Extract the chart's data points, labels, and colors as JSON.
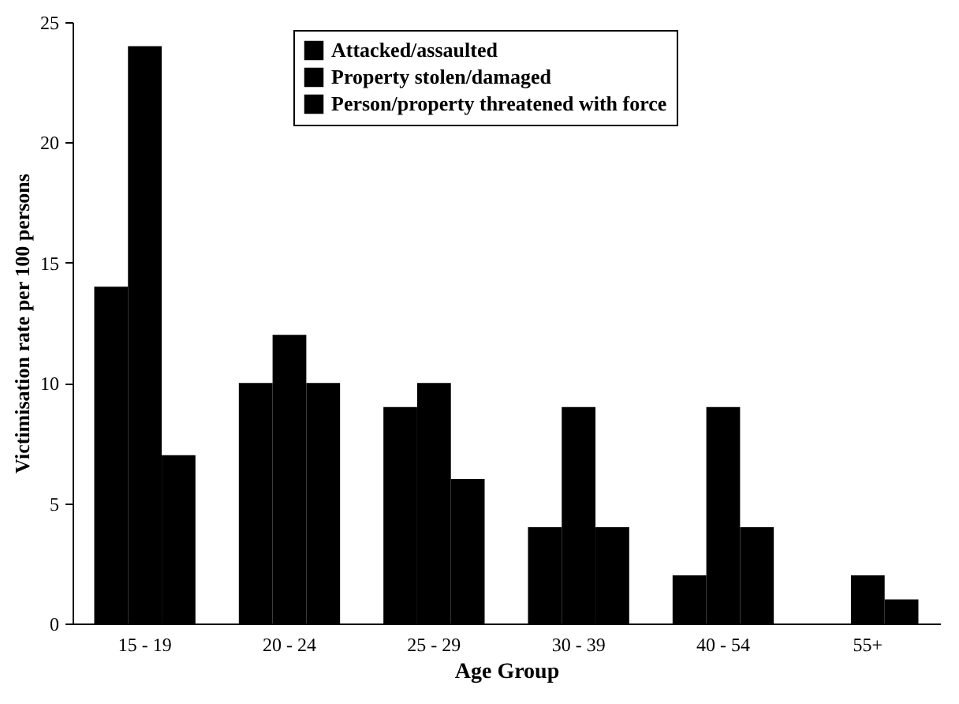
{
  "chart_data": {
    "type": "bar",
    "xlabel": "Age Group",
    "ylabel": "Victimisation rate per 100 persons",
    "categories": [
      "15 - 19",
      "20 - 24",
      "25 - 29",
      "30 - 39",
      "40 - 54",
      "55+"
    ],
    "series": [
      {
        "name": "Attacked/assaulted",
        "color": "#000000",
        "values": [
          14,
          10,
          9,
          4,
          2,
          0
        ]
      },
      {
        "name": "Property stolen/damaged",
        "color": "#000000",
        "values": [
          24,
          12,
          10,
          9,
          9,
          2
        ]
      },
      {
        "name": "Person/property threatened with force",
        "color": "#000000",
        "values": [
          7,
          10,
          6,
          4,
          4,
          1
        ]
      }
    ],
    "ylim": [
      0,
      25
    ],
    "yticks": [
      0,
      5,
      10,
      15,
      20,
      25
    ],
    "grid": false,
    "legend": "top"
  }
}
